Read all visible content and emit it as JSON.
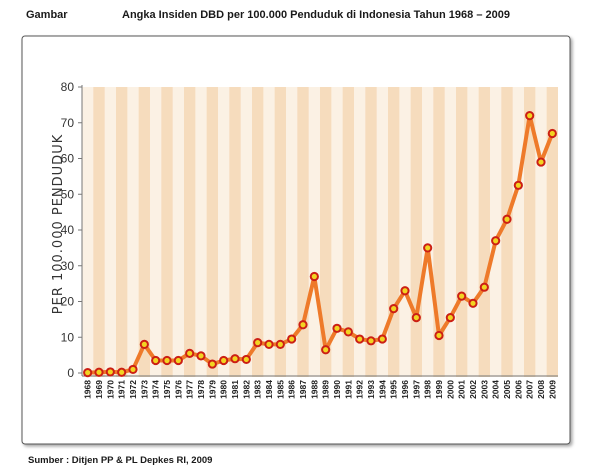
{
  "caption": {
    "label": "Gambar",
    "title": "Angka Insiden DBD per 100.000 Penduduk di Indonesia Tahun 1968 – 2009"
  },
  "source": "Sumber : Ditjen PP & PL Depkes  RI, 2009",
  "colors": {
    "panel_bg": "#fbf1e4",
    "stripe": "#f6dcbd",
    "line": "#ee7a2a",
    "marker_fill": "#f2d422",
    "marker_stroke": "#cc1f14",
    "frame": "#555555"
  },
  "chart_data": {
    "type": "line",
    "title": "Angka Insiden DBD per 100.000 Penduduk di Indonesia Tahun 1968 – 2009",
    "xlabel": "",
    "ylabel": "PER 100.000 PENDUDUK",
    "ylim": [
      0,
      80
    ],
    "yticks": [
      0,
      10,
      20,
      30,
      40,
      50,
      60,
      70,
      80
    ],
    "grid": false,
    "legend": "none",
    "categories": [
      "1968",
      "1969",
      "1970",
      "1971",
      "1972",
      "1973",
      "1974",
      "1975",
      "1976",
      "1977",
      "1978",
      "1979",
      "1980",
      "1981",
      "1982",
      "1983",
      "1984",
      "1985",
      "1986",
      "1987",
      "1988",
      "1989",
      "1990",
      "1991",
      "1992",
      "1993",
      "1994",
      "1995",
      "1996",
      "1997",
      "1998",
      "1999",
      "2000",
      "2001",
      "2002",
      "2003",
      "2004",
      "2005",
      "2006",
      "2007",
      "2008",
      "2009"
    ],
    "series": [
      {
        "values": [
          0.1,
          0.2,
          0.3,
          0.2,
          1.0,
          8.0,
          3.5,
          3.5,
          3.5,
          5.5,
          4.8,
          2.5,
          3.5,
          4.0,
          3.8,
          8.5,
          8.0,
          8.0,
          9.5,
          13.5,
          27.0,
          6.5,
          12.5,
          11.5,
          9.5,
          9.0,
          9.5,
          18.0,
          23.0,
          15.5,
          35.0,
          10.5,
          15.5,
          21.5,
          19.5,
          24.0,
          37.0,
          43.0,
          52.5,
          72.0,
          59.0,
          67.0
        ]
      }
    ]
  }
}
